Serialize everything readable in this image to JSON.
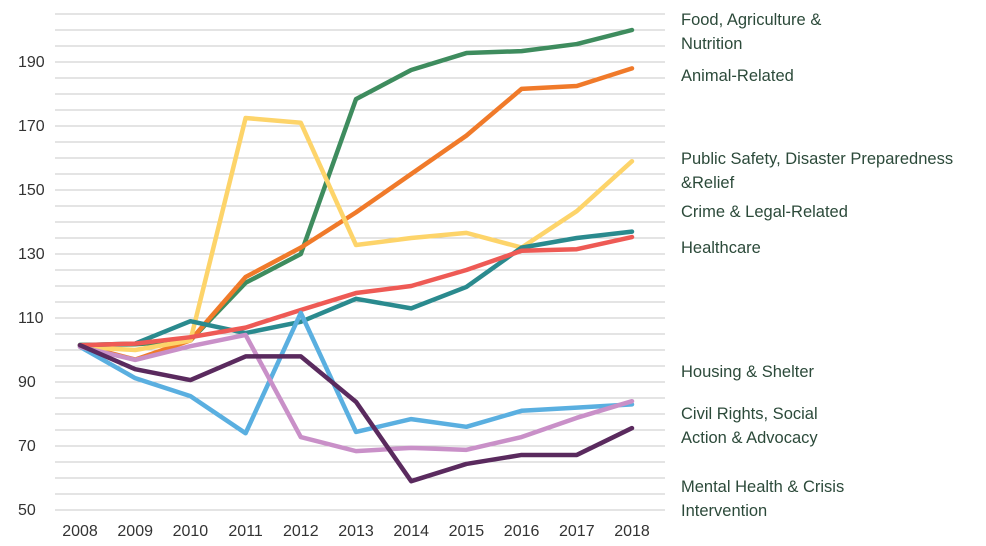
{
  "chart_data": {
    "type": "line",
    "categories": [
      "2008",
      "2009",
      "2010",
      "2011",
      "2012",
      "2013",
      "2014",
      "2015",
      "2016",
      "2017",
      "2018"
    ],
    "series": [
      {
        "name": "Food, Agriculture & Nutrition",
        "color": "#3e8c5e",
        "values": [
          101.6,
          101.8,
          103,
          121,
          130,
          178.4,
          187.5,
          192.8,
          193.4,
          195.6,
          200
        ]
      },
      {
        "name": "Animal-Related",
        "color": "#f07a2a",
        "values": [
          101.5,
          97,
          103,
          122.8,
          132,
          143,
          155,
          167,
          181.6,
          182.5,
          188
        ]
      },
      {
        "name": "Public Safety, Disaster Preparedness &Relief",
        "color": "#fdd46a",
        "values": [
          101,
          100,
          103,
          172.5,
          171,
          132.8,
          135,
          136.6,
          132,
          143.4,
          159
        ]
      },
      {
        "name": "Crime & Legal-Related",
        "color": "#2a8a8e",
        "values": [
          101.5,
          102,
          109,
          105.3,
          108.8,
          116,
          113,
          119.7,
          132,
          135,
          137
        ]
      },
      {
        "name": "Healthcare",
        "color": "#ee5a55",
        "values": [
          101.5,
          102,
          104,
          107,
          112.5,
          117.8,
          120,
          125,
          131,
          131.5,
          135.3
        ]
      },
      {
        "name": "Housing & Shelter",
        "color": "#5aafe0",
        "values": [
          101,
          91.2,
          85.6,
          74,
          111.6,
          74.4,
          78.4,
          76,
          81,
          82,
          83
        ]
      },
      {
        "name": "Civil Rights, Social Action & Advocacy",
        "color": "#c990c8",
        "values": [
          101,
          96.9,
          101.2,
          104.7,
          72.8,
          68.4,
          69.4,
          68.8,
          72.8,
          78.8,
          84
        ]
      },
      {
        "name": "Mental Health & Crisis Intervention",
        "color": "#5a2a5e",
        "values": [
          101.5,
          94,
          90.6,
          98,
          98,
          83.8,
          59,
          64.4,
          67.2,
          67.2,
          75.6
        ]
      }
    ],
    "ylim": [
      50,
      205
    ],
    "yticks": [
      50,
      70,
      90,
      110,
      130,
      150,
      170,
      190
    ],
    "minor_yticks": [
      55,
      60,
      65,
      75,
      80,
      85,
      95,
      100,
      105,
      115,
      120,
      125,
      135,
      140,
      145,
      155,
      160,
      165,
      175,
      180,
      185,
      195,
      200,
      205
    ],
    "grid": true
  }
}
